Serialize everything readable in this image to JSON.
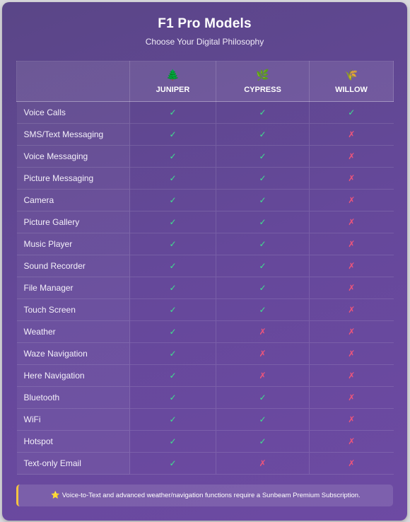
{
  "header": {
    "title": "F1 Pro Models",
    "subtitle": "Choose Your Digital Philosophy"
  },
  "models": [
    {
      "name": "JUNIPER",
      "icon": "🌲",
      "icon_name": "evergreen-tree-icon"
    },
    {
      "name": "CYPRESS",
      "icon": "🌿",
      "icon_name": "herb-icon"
    },
    {
      "name": "WILLOW",
      "icon": "🌾",
      "icon_name": "sheaf-icon"
    }
  ],
  "symbols": {
    "yes": "✓",
    "no": "✗"
  },
  "colors": {
    "yes": "#3fe08f",
    "no": "#f0557a",
    "note_accent": "#f5c441"
  },
  "features": [
    {
      "label": "Voice Calls",
      "values": [
        true,
        true,
        true
      ]
    },
    {
      "label": "SMS/Text Messaging",
      "values": [
        true,
        true,
        false
      ]
    },
    {
      "label": "Voice Messaging",
      "values": [
        true,
        true,
        false
      ]
    },
    {
      "label": "Picture Messaging",
      "values": [
        true,
        true,
        false
      ]
    },
    {
      "label": "Camera",
      "values": [
        true,
        true,
        false
      ]
    },
    {
      "label": "Picture Gallery",
      "values": [
        true,
        true,
        false
      ]
    },
    {
      "label": "Music Player",
      "values": [
        true,
        true,
        false
      ]
    },
    {
      "label": "Sound Recorder",
      "values": [
        true,
        true,
        false
      ]
    },
    {
      "label": "File Manager",
      "values": [
        true,
        true,
        false
      ]
    },
    {
      "label": "Touch Screen",
      "values": [
        true,
        true,
        false
      ]
    },
    {
      "label": "Weather",
      "values": [
        true,
        false,
        false
      ]
    },
    {
      "label": "Waze Navigation",
      "values": [
        true,
        false,
        false
      ]
    },
    {
      "label": "Here Navigation",
      "values": [
        true,
        false,
        false
      ]
    },
    {
      "label": "Bluetooth",
      "values": [
        true,
        true,
        false
      ]
    },
    {
      "label": "WiFi",
      "values": [
        true,
        true,
        false
      ]
    },
    {
      "label": "Hotspot",
      "values": [
        true,
        true,
        false
      ]
    },
    {
      "label": "Text-only Email",
      "values": [
        true,
        false,
        false
      ]
    }
  ],
  "footer": {
    "icon": "⭐",
    "text": "Voice-to-Text and advanced weather/navigation functions require a Sunbeam Premium Subscription."
  }
}
